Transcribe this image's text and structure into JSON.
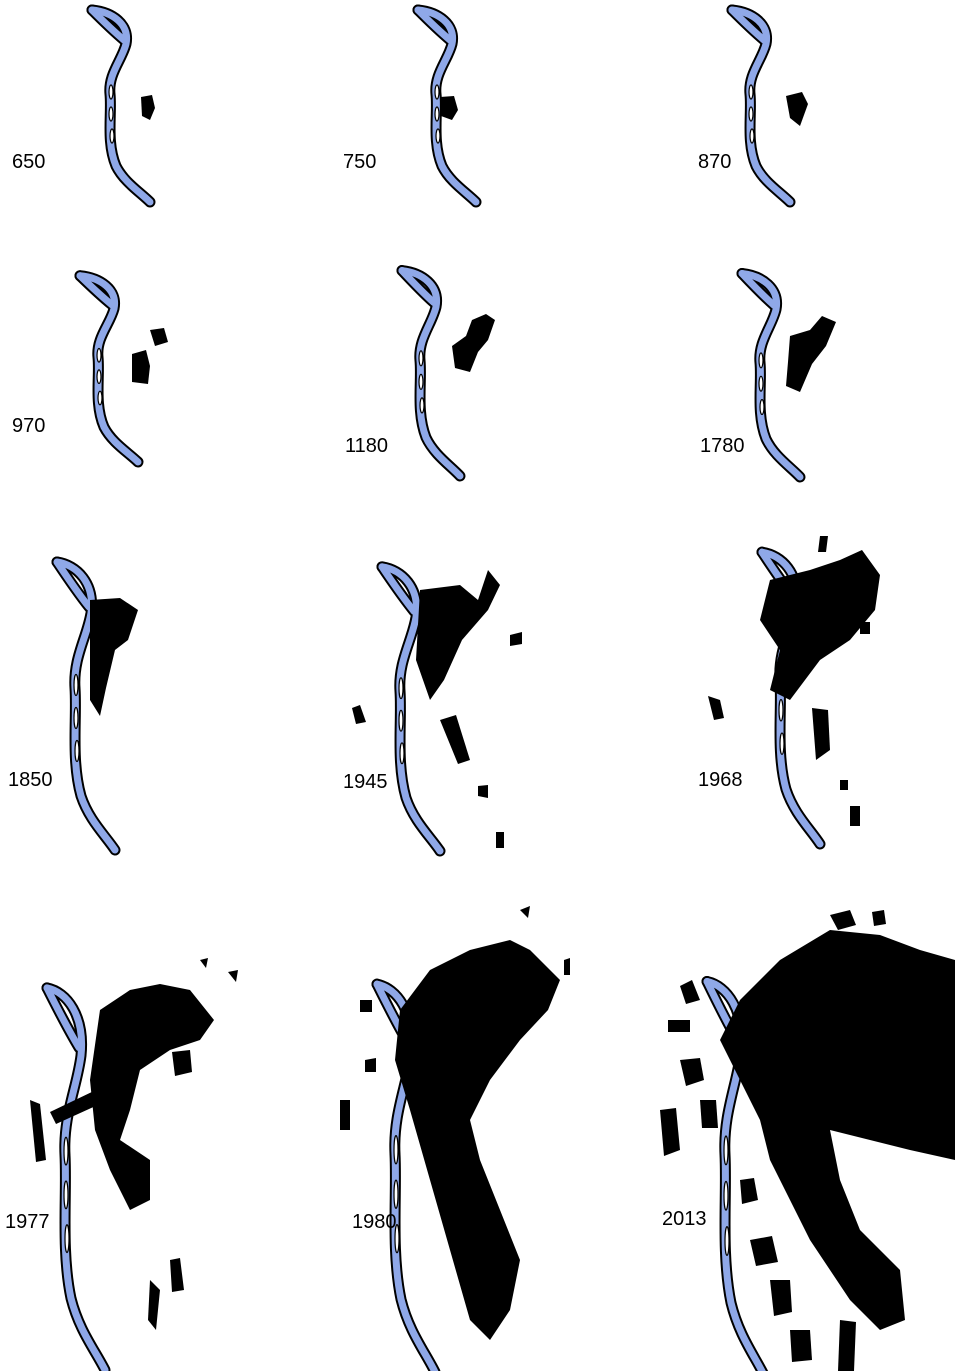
{
  "panels": [
    {
      "label": "650"
    },
    {
      "label": "750"
    },
    {
      "label": "870"
    },
    {
      "label": "970"
    },
    {
      "label": "1180"
    },
    {
      "label": "1780"
    },
    {
      "label": "1850"
    },
    {
      "label": "1945"
    },
    {
      "label": "1968"
    },
    {
      "label": "1977"
    },
    {
      "label": "1980"
    },
    {
      "label": "2013"
    }
  ]
}
